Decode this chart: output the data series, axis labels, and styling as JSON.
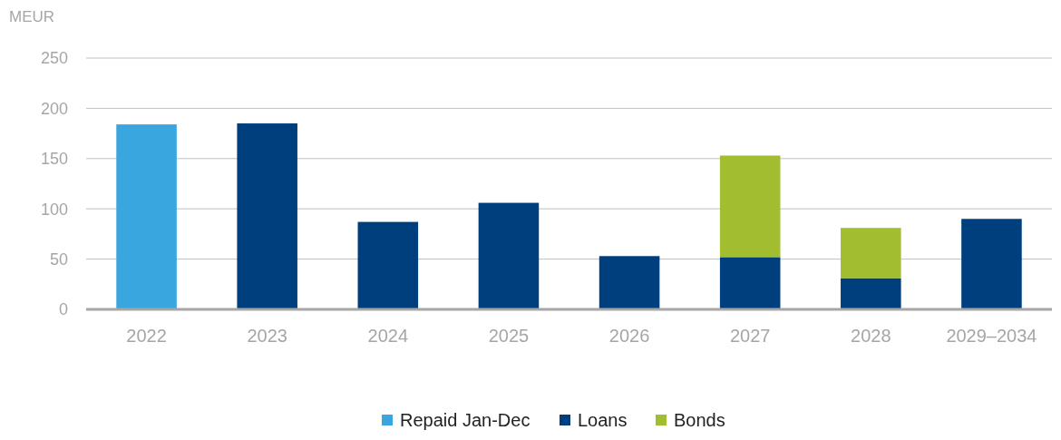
{
  "chart_data": {
    "type": "bar",
    "ylabel": "MEUR",
    "stacked": true,
    "categories": [
      "2022",
      "2023",
      "2024",
      "2025",
      "2026",
      "2027",
      "2028",
      "2029–2034"
    ],
    "series": [
      {
        "name": "Repaid Jan-Dec",
        "color": "#3aa6e0",
        "values": [
          184,
          null,
          null,
          null,
          null,
          null,
          null,
          null
        ]
      },
      {
        "name": "Loans",
        "color": "#003f7d",
        "values": [
          null,
          185,
          87,
          106,
          53,
          52,
          31,
          90
        ]
      },
      {
        "name": "Bonds",
        "color": "#a2bd30",
        "values": [
          null,
          null,
          null,
          null,
          null,
          101,
          50,
          null
        ]
      }
    ],
    "ylim": [
      0,
      250
    ],
    "yticks": [
      0,
      50,
      100,
      150,
      200,
      250
    ],
    "grid": "y",
    "legend": "bottom"
  }
}
